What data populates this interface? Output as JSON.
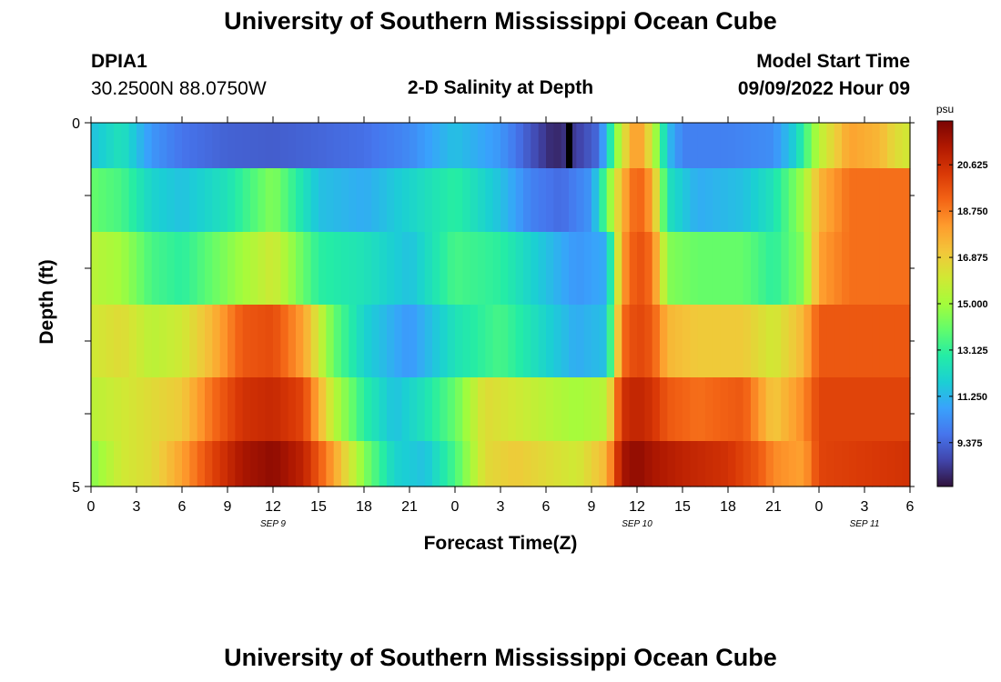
{
  "header": {
    "title": "University of Southern Mississippi Ocean Cube",
    "station_id": "DPIA1",
    "station_coords": "30.2500N  88.0750W",
    "plot_title": "2-D Salinity at Depth",
    "start_label": "Model Start Time",
    "start_value": "09/09/2022 Hour 09"
  },
  "footer": {
    "title": "University of Southern Mississippi Ocean Cube"
  },
  "chart_data": {
    "type": "heatmap",
    "title": "2-D Salinity at Depth",
    "xlabel": "Forecast Time(Z)",
    "ylabel": "Depth (ft)",
    "x_tick_labels": [
      "0",
      "3",
      "6",
      "9",
      "12",
      "15",
      "18",
      "21",
      "0",
      "3",
      "6",
      "9",
      "12",
      "15",
      "18",
      "21",
      "0",
      "3",
      "6"
    ],
    "date_labels": [
      {
        "label": "SEP 9",
        "hour": 12
      },
      {
        "label": "SEP 10",
        "hour": 36
      },
      {
        "label": "SEP 11",
        "hour": 51
      }
    ],
    "x_range_hours": [
      0,
      54
    ],
    "y_range_ft": [
      0,
      5
    ],
    "y_tick_labels": [
      "0",
      "5"
    ],
    "colorbar": {
      "unit": "psu",
      "min": 7.6,
      "max": 22.4,
      "tick_values": [
        9.375,
        11.25,
        13.125,
        15.0,
        16.875,
        18.75,
        20.625
      ],
      "tick_labels": [
        "9.375",
        "11.250",
        "13.125",
        "15.000",
        "16.875",
        "18.750",
        "20.625"
      ],
      "colors": [
        "#30123b",
        "#4145ab",
        "#4675ed",
        "#39a2fc",
        "#1bcfd4",
        "#24eca6",
        "#61fc6c",
        "#a4fc3b",
        "#d1e834",
        "#f3c63a",
        "#fe9b2d",
        "#f36315",
        "#d93806",
        "#b11901",
        "#7a0403"
      ]
    },
    "depth_rows": [
      {
        "depth_ft": 0.25,
        "keypoints": [
          [
            0,
            11.5
          ],
          [
            2,
            12.5
          ],
          [
            4,
            10.5
          ],
          [
            6,
            9.7
          ],
          [
            9,
            9.3
          ],
          [
            12,
            9.2
          ],
          [
            15,
            9.4
          ],
          [
            18,
            9.6
          ],
          [
            21,
            10.2
          ],
          [
            24,
            11.5
          ],
          [
            27,
            10.5
          ],
          [
            29,
            9.0
          ],
          [
            30.5,
            8.0
          ],
          [
            32,
            8.5
          ],
          [
            33.5,
            9.5
          ],
          [
            35,
            16.0
          ],
          [
            36,
            18.5
          ],
          [
            37,
            16.0
          ],
          [
            38,
            11.5
          ],
          [
            39,
            10.0
          ],
          [
            42,
            10.0
          ],
          [
            45,
            10.3
          ],
          [
            46.5,
            12.0
          ],
          [
            48,
            15.5
          ],
          [
            50,
            18.0
          ],
          [
            52,
            17.5
          ],
          [
            53,
            16.5
          ],
          [
            54,
            16.0
          ]
        ]
      },
      {
        "depth_ft": 1.0,
        "keypoints": [
          [
            0,
            14.0
          ],
          [
            2,
            13.5
          ],
          [
            4,
            12.0
          ],
          [
            6,
            11.5
          ],
          [
            9,
            12.5
          ],
          [
            12,
            14.5
          ],
          [
            15,
            11.5
          ],
          [
            18,
            11.0
          ],
          [
            21,
            12.0
          ],
          [
            24,
            13.0
          ],
          [
            27,
            11.5
          ],
          [
            29,
            10.0
          ],
          [
            31,
            9.5
          ],
          [
            33,
            10.5
          ],
          [
            35,
            17.5
          ],
          [
            36,
            19.5
          ],
          [
            37,
            18.0
          ],
          [
            38,
            12.5
          ],
          [
            40,
            11.0
          ],
          [
            43,
            11.5
          ],
          [
            45,
            12.5
          ],
          [
            47,
            15.0
          ],
          [
            48,
            17.5
          ],
          [
            50,
            19.0
          ],
          [
            54,
            19.0
          ]
        ]
      },
      {
        "depth_ft": 2.0,
        "keypoints": [
          [
            0,
            15.5
          ],
          [
            2,
            15.0
          ],
          [
            4,
            13.5
          ],
          [
            6,
            13.0
          ],
          [
            9,
            14.5
          ],
          [
            12,
            16.0
          ],
          [
            15,
            13.0
          ],
          [
            18,
            12.5
          ],
          [
            21,
            11.5
          ],
          [
            24,
            13.5
          ],
          [
            27,
            13.0
          ],
          [
            30,
            11.5
          ],
          [
            32,
            10.5
          ],
          [
            34,
            11.0
          ],
          [
            35,
            18.0
          ],
          [
            36,
            19.8
          ],
          [
            37,
            19.0
          ],
          [
            38,
            14.5
          ],
          [
            40,
            14.0
          ],
          [
            43,
            14.0
          ],
          [
            45,
            13.0
          ],
          [
            47,
            14.5
          ],
          [
            48,
            18.0
          ],
          [
            50,
            19.0
          ],
          [
            54,
            19.0
          ]
        ]
      },
      {
        "depth_ft": 3.0,
        "keypoints": [
          [
            0,
            16.0
          ],
          [
            2,
            16.5
          ],
          [
            4,
            15.5
          ],
          [
            6,
            16.0
          ],
          [
            8,
            17.5
          ],
          [
            10,
            19.5
          ],
          [
            12,
            19.8
          ],
          [
            14,
            18.0
          ],
          [
            16,
            14.0
          ],
          [
            18,
            12.0
          ],
          [
            21,
            10.5
          ],
          [
            24,
            12.5
          ],
          [
            27,
            13.5
          ],
          [
            30,
            12.0
          ],
          [
            32,
            11.0
          ],
          [
            34,
            11.5
          ],
          [
            35,
            19.0
          ],
          [
            36,
            20.0
          ],
          [
            37,
            19.5
          ],
          [
            38,
            17.5
          ],
          [
            40,
            17.0
          ],
          [
            43,
            17.0
          ],
          [
            45,
            16.0
          ],
          [
            47,
            17.5
          ],
          [
            48,
            19.5
          ],
          [
            54,
            19.5
          ]
        ]
      },
      {
        "depth_ft": 4.0,
        "keypoints": [
          [
            0,
            15.5
          ],
          [
            2,
            16.0
          ],
          [
            4,
            16.5
          ],
          [
            6,
            17.0
          ],
          [
            8,
            19.0
          ],
          [
            10,
            20.5
          ],
          [
            12,
            20.8
          ],
          [
            14,
            20.0
          ],
          [
            16,
            15.5
          ],
          [
            18,
            13.0
          ],
          [
            20,
            11.5
          ],
          [
            22,
            12.5
          ],
          [
            24,
            14.0
          ],
          [
            26,
            16.5
          ],
          [
            28,
            16.0
          ],
          [
            30,
            15.5
          ],
          [
            32,
            15.0
          ],
          [
            34,
            15.5
          ],
          [
            35,
            20.5
          ],
          [
            36,
            21.0
          ],
          [
            37,
            20.5
          ],
          [
            38,
            19.5
          ],
          [
            40,
            19.0
          ],
          [
            43,
            19.5
          ],
          [
            45,
            17.0
          ],
          [
            47,
            18.5
          ],
          [
            48,
            20.0
          ],
          [
            54,
            20.0
          ]
        ]
      },
      {
        "depth_ft": 4.75,
        "keypoints": [
          [
            0,
            14.5
          ],
          [
            2,
            16.0
          ],
          [
            4,
            16.5
          ],
          [
            6,
            18.0
          ],
          [
            8,
            20.0
          ],
          [
            10,
            21.5
          ],
          [
            12,
            22.0
          ],
          [
            14,
            21.0
          ],
          [
            16,
            18.0
          ],
          [
            18,
            14.5
          ],
          [
            20,
            12.0
          ],
          [
            22,
            11.5
          ],
          [
            24,
            13.5
          ],
          [
            26,
            16.5
          ],
          [
            28,
            17.0
          ],
          [
            30,
            16.5
          ],
          [
            32,
            16.0
          ],
          [
            34,
            17.5
          ],
          [
            35,
            21.5
          ],
          [
            36,
            22.0
          ],
          [
            37,
            21.5
          ],
          [
            39,
            21.0
          ],
          [
            42,
            20.5
          ],
          [
            44,
            19.5
          ],
          [
            45,
            18.5
          ],
          [
            47,
            18.0
          ],
          [
            48,
            20.0
          ],
          [
            54,
            20.5
          ]
        ]
      }
    ],
    "black_marker_hour": 31.5
  }
}
